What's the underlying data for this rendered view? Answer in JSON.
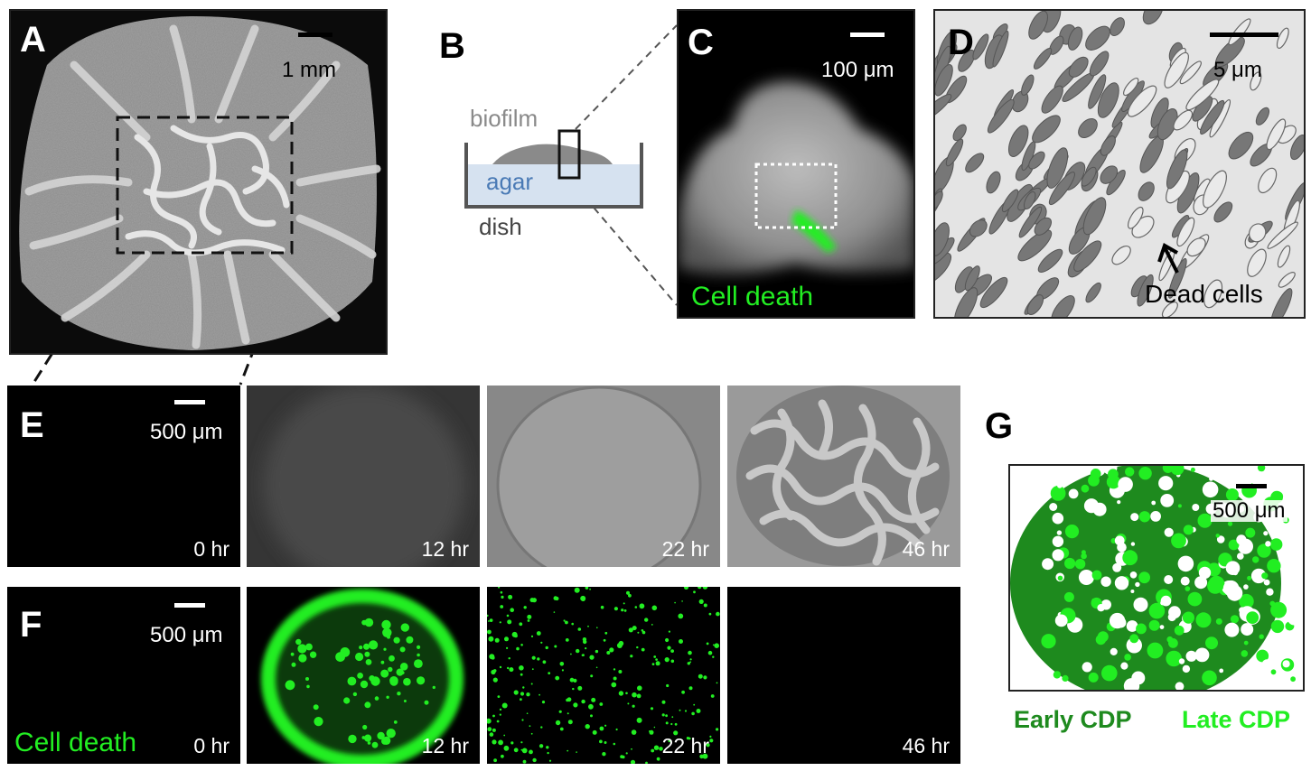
{
  "panels": {
    "A": {
      "letter": "A",
      "scale_bar": "1 mm"
    },
    "B": {
      "letter": "B",
      "labels": {
        "biofilm": "biofilm",
        "agar": "agar",
        "dish": "dish"
      }
    },
    "C": {
      "letter": "C",
      "scale_bar": "100 μm",
      "caption": "Cell death"
    },
    "D": {
      "letter": "D",
      "scale_bar": "5 μm",
      "annotation": "Dead cells"
    },
    "E": {
      "letter": "E",
      "scale_bar": "500 μm",
      "times": [
        "0 hr",
        "12 hr",
        "22 hr",
        "46 hr"
      ]
    },
    "F": {
      "letter": "F",
      "scale_bar": "500 μm",
      "caption": "Cell death",
      "times": [
        "0 hr",
        "12 hr",
        "22 hr",
        "46 hr"
      ]
    },
    "G": {
      "letter": "G",
      "scale_bar": "500 μm",
      "legend": [
        "Early CDP",
        "Late CDP"
      ]
    }
  },
  "colors": {
    "green_bright": "#22ee22",
    "green_dark": "#1e8a1e",
    "agar_blue": "#d6e2f0",
    "agar_text": "#4a7ab5",
    "biofilm_gray": "#8a8a8a"
  }
}
